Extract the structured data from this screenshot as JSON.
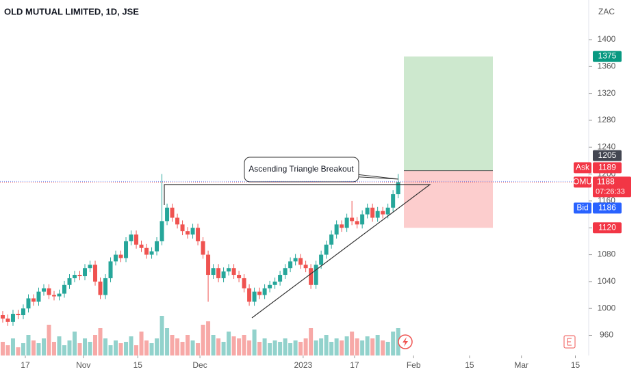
{
  "chart_data": {
    "type": "candlestick",
    "title": "OLD MUTUAL LIMITED, 1D, JSE",
    "currency": "ZAC",
    "open": [
      990,
      985,
      980,
      992,
      990,
      1000,
      1015,
      1010,
      1025,
      1030,
      1020,
      1018,
      1022,
      1035,
      1045,
      1050,
      1048,
      1060,
      1065,
      1040,
      1020,
      1045,
      1070,
      1080,
      1075,
      1100,
      1110,
      1095,
      1090,
      1080,
      1085,
      1100,
      1130,
      1150,
      1135,
      1125,
      1115,
      1110,
      1120,
      1100,
      1080,
      1050,
      1060,
      1045,
      1055,
      1060,
      1050,
      1045,
      1030,
      1010,
      1025,
      1020,
      1030,
      1035,
      1040,
      1050,
      1060,
      1070,
      1075,
      1065,
      1060,
      1035,
      1065,
      1080,
      1095,
      1110,
      1125,
      1120,
      1135,
      1130,
      1125,
      1140,
      1150,
      1135,
      1145,
      1140,
      1150,
      1170
    ],
    "high": [
      996,
      991,
      998,
      998,
      1006,
      1021,
      1021,
      1031,
      1036,
      1036,
      1026,
      1028,
      1041,
      1051,
      1056,
      1056,
      1066,
      1071,
      1071,
      1046,
      1051,
      1076,
      1086,
      1086,
      1106,
      1116,
      1116,
      1101,
      1096,
      1091,
      1106,
      1200,
      1156,
      1156,
      1141,
      1131,
      1121,
      1126,
      1126,
      1106,
      1086,
      1066,
      1066,
      1061,
      1066,
      1066,
      1056,
      1051,
      1036,
      1031,
      1031,
      1036,
      1041,
      1046,
      1056,
      1066,
      1076,
      1081,
      1081,
      1071,
      1066,
      1071,
      1086,
      1101,
      1116,
      1131,
      1131,
      1141,
      1160,
      1136,
      1146,
      1156,
      1156,
      1151,
      1151,
      1156,
      1176,
      1200
    ],
    "low": [
      979,
      974,
      974,
      984,
      984,
      994,
      1004,
      1004,
      1019,
      1014,
      1012,
      1012,
      1016,
      1029,
      1039,
      1042,
      1042,
      1054,
      1034,
      1014,
      1014,
      1039,
      1064,
      1069,
      1069,
      1094,
      1089,
      1084,
      1074,
      1074,
      1079,
      1094,
      1124,
      1129,
      1119,
      1109,
      1104,
      1104,
      1094,
      1074,
      1010,
      1044,
      1039,
      1039,
      1049,
      1044,
      1039,
      1024,
      1004,
      1004,
      1014,
      1014,
      1024,
      1029,
      1034,
      1044,
      1054,
      1064,
      1059,
      1054,
      1029,
      1029,
      1059,
      1074,
      1089,
      1104,
      1114,
      1114,
      1124,
      1119,
      1119,
      1134,
      1129,
      1129,
      1134,
      1134,
      1144,
      1164
    ],
    "close": [
      985,
      980,
      992,
      990,
      1000,
      1015,
      1010,
      1025,
      1030,
      1020,
      1018,
      1022,
      1035,
      1045,
      1050,
      1048,
      1060,
      1065,
      1040,
      1020,
      1045,
      1070,
      1080,
      1075,
      1100,
      1110,
      1095,
      1090,
      1080,
      1085,
      1100,
      1130,
      1150,
      1135,
      1125,
      1115,
      1110,
      1120,
      1100,
      1080,
      1050,
      1060,
      1045,
      1055,
      1060,
      1050,
      1045,
      1030,
      1010,
      1025,
      1020,
      1030,
      1035,
      1040,
      1050,
      1060,
      1070,
      1075,
      1065,
      1060,
      1035,
      1065,
      1080,
      1095,
      1110,
      1125,
      1120,
      1135,
      1130,
      1125,
      1140,
      1150,
      1135,
      1145,
      1140,
      1150,
      1170,
      1188
    ],
    "volume": [
      20,
      15,
      25,
      12,
      18,
      30,
      22,
      18,
      25,
      45,
      20,
      28,
      15,
      22,
      35,
      18,
      25,
      20,
      30,
      40,
      25,
      15,
      22,
      18,
      20,
      28,
      15,
      35,
      22,
      18,
      25,
      58,
      40,
      30,
      25,
      20,
      30,
      22,
      18,
      45,
      50,
      30,
      25,
      20,
      35,
      28,
      25,
      30,
      22,
      38,
      20,
      25,
      18,
      22,
      20,
      25,
      18,
      22,
      20,
      25,
      40,
      22,
      25,
      30,
      20,
      25,
      22,
      28,
      35,
      25,
      22,
      28,
      25,
      30,
      22,
      20,
      35,
      40
    ],
    "up_color": "#26a69a",
    "down_color": "#ef5350",
    "ylim": [
      930,
      1459
    ],
    "yticks": [
      960,
      1000,
      1040,
      1080,
      1120,
      1160,
      1200,
      1240,
      1280,
      1320,
      1360,
      1400
    ],
    "xlim": [
      -0.53,
      114.1
    ],
    "xticks": [
      {
        "value": 4.4,
        "label": "17"
      },
      {
        "value": 15.7,
        "label": "Nov"
      },
      {
        "value": 26.3,
        "label": "15"
      },
      {
        "value": 38.4,
        "label": "Dec"
      },
      {
        "value": 58.5,
        "label": "2023"
      },
      {
        "value": 68.5,
        "label": "17"
      },
      {
        "value": 80,
        "label": "Feb"
      },
      {
        "value": 90.9,
        "label": "15"
      },
      {
        "value": 101,
        "label": "Mar"
      },
      {
        "value": 111.5,
        "label": "15"
      }
    ],
    "position": {
      "target": 1375,
      "entry": 1205,
      "stop": 1120
    },
    "quotes": {
      "ask": {
        "label": "Ask",
        "value": 1189
      },
      "last": {
        "label": "OMU",
        "value": 1188,
        "countdown": "07:26:33"
      },
      "bid": {
        "label": "Bid",
        "value": 1186
      }
    },
    "annotation": "Ascending Triangle Breakout"
  }
}
